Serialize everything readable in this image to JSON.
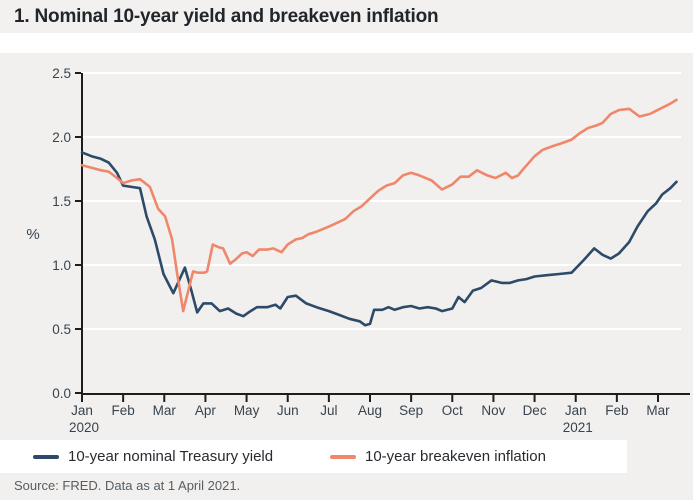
{
  "title": "1. Nominal 10-year yield and breakeven inflation",
  "source": "Source: FRED. Data as at 1 April 2021.",
  "colors": {
    "nominal_yield": "#2d4a68",
    "breakeven_inflation": "#ef876a",
    "axis": "#1d1d1d",
    "tick_text": "#39434d",
    "gridline": "#ffffff",
    "panel_background": "#f1f0ee"
  },
  "legend": [
    {
      "label": "10-year nominal Treasury yield",
      "color": "#2d4a68"
    },
    {
      "label": "10-year breakeven inflation",
      "color": "#ef876a"
    }
  ],
  "chart_data": {
    "type": "line",
    "title": "1. Nominal 10-year yield and breakeven inflation",
    "ylabel": "%",
    "ylim": [
      0.0,
      2.5
    ],
    "ytick_values": [
      0,
      0.5,
      1,
      1.5,
      2,
      2.5
    ],
    "ytick_labels": [
      "0.0",
      "0.5",
      "1.0",
      "1.5",
      "2.0",
      "2.5"
    ],
    "x_unit": "months since Jan 2020 tick",
    "xtick_labels": [
      "Jan",
      "Feb",
      "Mar",
      "Apr",
      "May",
      "Jun",
      "Jul",
      "Aug",
      "Sep",
      "Oct",
      "Nov",
      "Dec",
      "Jan",
      "Feb",
      "Mar"
    ],
    "year_labels": [
      {
        "tick_index": 0,
        "label": "2020"
      },
      {
        "tick_index": 12,
        "label": "2021"
      }
    ],
    "grid": true,
    "legend_position": "bottom",
    "series": [
      {
        "name": "10-year nominal Treasury yield",
        "color": "#2d4a68",
        "points": [
          [
            0.0,
            1.88
          ],
          [
            0.23,
            1.85
          ],
          [
            0.46,
            1.83
          ],
          [
            0.65,
            1.8
          ],
          [
            0.85,
            1.72
          ],
          [
            1.0,
            1.62
          ],
          [
            1.2,
            1.61
          ],
          [
            1.41,
            1.6
          ],
          [
            1.57,
            1.38
          ],
          [
            1.77,
            1.2
          ],
          [
            1.98,
            0.93
          ],
          [
            2.22,
            0.78
          ],
          [
            2.5,
            0.98
          ],
          [
            2.66,
            0.8
          ],
          [
            2.8,
            0.63
          ],
          [
            2.95,
            0.7
          ],
          [
            3.15,
            0.7
          ],
          [
            3.35,
            0.64
          ],
          [
            3.55,
            0.66
          ],
          [
            3.75,
            0.62
          ],
          [
            3.92,
            0.6
          ],
          [
            4.05,
            0.63
          ],
          [
            4.25,
            0.67
          ],
          [
            4.5,
            0.67
          ],
          [
            4.7,
            0.69
          ],
          [
            4.82,
            0.66
          ],
          [
            5.0,
            0.75
          ],
          [
            5.2,
            0.76
          ],
          [
            5.45,
            0.7
          ],
          [
            5.7,
            0.67
          ],
          [
            6.0,
            0.64
          ],
          [
            6.25,
            0.61
          ],
          [
            6.5,
            0.58
          ],
          [
            6.75,
            0.56
          ],
          [
            6.88,
            0.53
          ],
          [
            7.0,
            0.54
          ],
          [
            7.1,
            0.65
          ],
          [
            7.3,
            0.65
          ],
          [
            7.45,
            0.67
          ],
          [
            7.6,
            0.65
          ],
          [
            7.8,
            0.67
          ],
          [
            8.0,
            0.68
          ],
          [
            8.2,
            0.66
          ],
          [
            8.4,
            0.67
          ],
          [
            8.6,
            0.66
          ],
          [
            8.75,
            0.64
          ],
          [
            9.0,
            0.66
          ],
          [
            9.15,
            0.75
          ],
          [
            9.3,
            0.71
          ],
          [
            9.5,
            0.8
          ],
          [
            9.7,
            0.82
          ],
          [
            9.95,
            0.88
          ],
          [
            10.2,
            0.86
          ],
          [
            10.4,
            0.86
          ],
          [
            10.6,
            0.88
          ],
          [
            10.8,
            0.89
          ],
          [
            11.0,
            0.91
          ],
          [
            11.3,
            0.92
          ],
          [
            11.6,
            0.93
          ],
          [
            11.9,
            0.94
          ],
          [
            12.2,
            1.04
          ],
          [
            12.45,
            1.13
          ],
          [
            12.65,
            1.08
          ],
          [
            12.85,
            1.05
          ],
          [
            13.05,
            1.09
          ],
          [
            13.3,
            1.18
          ],
          [
            13.5,
            1.3
          ],
          [
            13.75,
            1.42
          ],
          [
            13.95,
            1.48
          ],
          [
            14.1,
            1.55
          ],
          [
            14.3,
            1.6
          ],
          [
            14.45,
            1.65
          ]
        ]
      },
      {
        "name": "10-year breakeven inflation",
        "color": "#ef876a",
        "points": [
          [
            0.0,
            1.78
          ],
          [
            0.23,
            1.76
          ],
          [
            0.46,
            1.74
          ],
          [
            0.65,
            1.73
          ],
          [
            0.85,
            1.68
          ],
          [
            1.0,
            1.64
          ],
          [
            1.2,
            1.66
          ],
          [
            1.41,
            1.67
          ],
          [
            1.65,
            1.61
          ],
          [
            1.85,
            1.44
          ],
          [
            2.02,
            1.38
          ],
          [
            2.19,
            1.2
          ],
          [
            2.31,
            0.94
          ],
          [
            2.46,
            0.64
          ],
          [
            2.7,
            0.95
          ],
          [
            2.82,
            0.94
          ],
          [
            2.97,
            0.94
          ],
          [
            3.04,
            0.95
          ],
          [
            3.18,
            1.16
          ],
          [
            3.31,
            1.14
          ],
          [
            3.43,
            1.13
          ],
          [
            3.6,
            1.01
          ],
          [
            3.72,
            1.04
          ],
          [
            3.89,
            1.09
          ],
          [
            4.0,
            1.1
          ],
          [
            4.15,
            1.07
          ],
          [
            4.3,
            1.12
          ],
          [
            4.5,
            1.12
          ],
          [
            4.65,
            1.13
          ],
          [
            4.85,
            1.1
          ],
          [
            5.0,
            1.16
          ],
          [
            5.2,
            1.2
          ],
          [
            5.35,
            1.21
          ],
          [
            5.5,
            1.24
          ],
          [
            5.7,
            1.26
          ],
          [
            6.0,
            1.3
          ],
          [
            6.2,
            1.33
          ],
          [
            6.4,
            1.36
          ],
          [
            6.6,
            1.42
          ],
          [
            6.8,
            1.46
          ],
          [
            7.0,
            1.52
          ],
          [
            7.2,
            1.58
          ],
          [
            7.4,
            1.62
          ],
          [
            7.6,
            1.64
          ],
          [
            7.8,
            1.7
          ],
          [
            8.0,
            1.72
          ],
          [
            8.2,
            1.7
          ],
          [
            8.5,
            1.66
          ],
          [
            8.75,
            1.59
          ],
          [
            9.0,
            1.63
          ],
          [
            9.2,
            1.69
          ],
          [
            9.4,
            1.69
          ],
          [
            9.6,
            1.74
          ],
          [
            9.85,
            1.7
          ],
          [
            10.05,
            1.68
          ],
          [
            10.3,
            1.72
          ],
          [
            10.45,
            1.68
          ],
          [
            10.6,
            1.7
          ],
          [
            10.7,
            1.74
          ],
          [
            11.0,
            1.85
          ],
          [
            11.2,
            1.9
          ],
          [
            11.45,
            1.93
          ],
          [
            11.65,
            1.95
          ],
          [
            11.9,
            1.98
          ],
          [
            12.1,
            2.03
          ],
          [
            12.3,
            2.07
          ],
          [
            12.5,
            2.09
          ],
          [
            12.65,
            2.11
          ],
          [
            12.85,
            2.18
          ],
          [
            13.05,
            2.21
          ],
          [
            13.3,
            2.22
          ],
          [
            13.55,
            2.16
          ],
          [
            13.8,
            2.18
          ],
          [
            14.05,
            2.22
          ],
          [
            14.3,
            2.26
          ],
          [
            14.45,
            2.29
          ]
        ]
      }
    ]
  }
}
